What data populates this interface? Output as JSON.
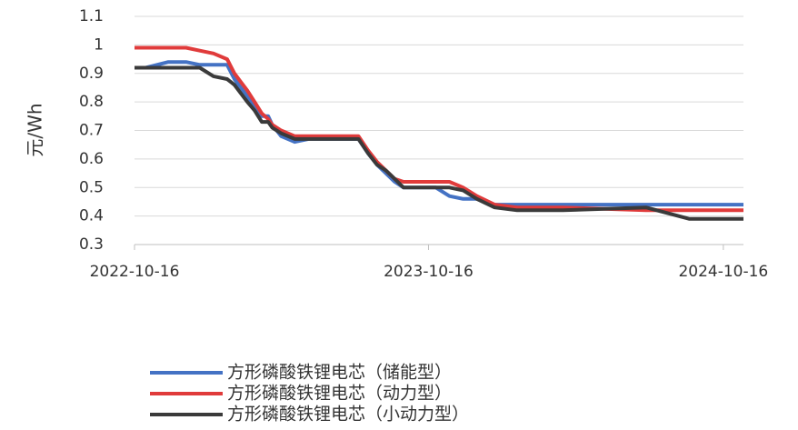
{
  "chart_data": {
    "type": "line",
    "y_label": "元/Wh",
    "x": [
      "2022-10-16",
      "2022-10-30",
      "2022-11-27",
      "2022-12-19",
      "2023-01-05",
      "2023-01-22",
      "2023-02-08",
      "2023-02-17",
      "2023-02-25",
      "2023-03-05",
      "2023-03-14",
      "2023-03-23",
      "2023-03-31",
      "2023-04-05",
      "2023-04-16",
      "2023-05-03",
      "2023-05-20",
      "2023-06-12",
      "2023-07-21",
      "2023-08-02",
      "2023-08-13",
      "2023-08-24",
      "2023-09-04",
      "2023-09-15",
      "2023-10-25",
      "2023-11-11",
      "2023-11-28",
      "2023-12-15",
      "2024-01-06",
      "2024-02-03",
      "2024-03-31",
      "2024-07-12",
      "2024-09-04",
      "2024-11-10"
    ],
    "series": [
      {
        "name": "方形磷酸铁锂电芯（储能型）",
        "color": "#4472c4",
        "values": [
          0.92,
          0.92,
          0.94,
          0.94,
          0.93,
          0.93,
          0.93,
          0.88,
          0.85,
          0.82,
          0.78,
          0.75,
          0.75,
          0.72,
          0.68,
          0.66,
          0.67,
          0.67,
          0.67,
          0.62,
          0.58,
          0.55,
          0.52,
          0.5,
          0.5,
          0.47,
          0.46,
          0.46,
          0.44,
          0.44,
          0.44,
          0.44,
          0.44,
          0.44
        ]
      },
      {
        "name": "方形磷酸铁锂电芯（动力型）",
        "color": "#e03b3b",
        "values": [
          0.99,
          0.99,
          0.99,
          0.99,
          0.98,
          0.97,
          0.95,
          0.9,
          0.87,
          0.84,
          0.8,
          0.76,
          0.74,
          0.72,
          0.7,
          0.68,
          0.68,
          0.68,
          0.68,
          0.63,
          0.59,
          0.56,
          0.53,
          0.52,
          0.52,
          0.52,
          0.5,
          0.47,
          0.44,
          0.43,
          0.43,
          0.42,
          0.42,
          0.42
        ]
      },
      {
        "name": "方形磷酸铁锂电芯（小动力型）",
        "color": "#3a3a3a",
        "values": [
          0.92,
          0.92,
          0.92,
          0.92,
          0.92,
          0.89,
          0.88,
          0.86,
          0.83,
          0.8,
          0.77,
          0.73,
          0.73,
          0.71,
          0.69,
          0.67,
          0.67,
          0.67,
          0.67,
          0.62,
          0.58,
          0.56,
          0.53,
          0.5,
          0.5,
          0.5,
          0.49,
          0.46,
          0.43,
          0.42,
          0.42,
          0.43,
          0.39,
          0.39
        ]
      }
    ],
    "xlim": [
      "2022-10-16",
      "2024-11-10"
    ],
    "xticks": [
      "2022-10-16",
      "2023-10-16",
      "2024-10-16"
    ],
    "ylim": [
      0.3,
      1.1
    ],
    "yticks": [
      0.3,
      0.4,
      0.5,
      0.6,
      0.7,
      0.8,
      0.9,
      1,
      1.1
    ],
    "grid": true
  }
}
